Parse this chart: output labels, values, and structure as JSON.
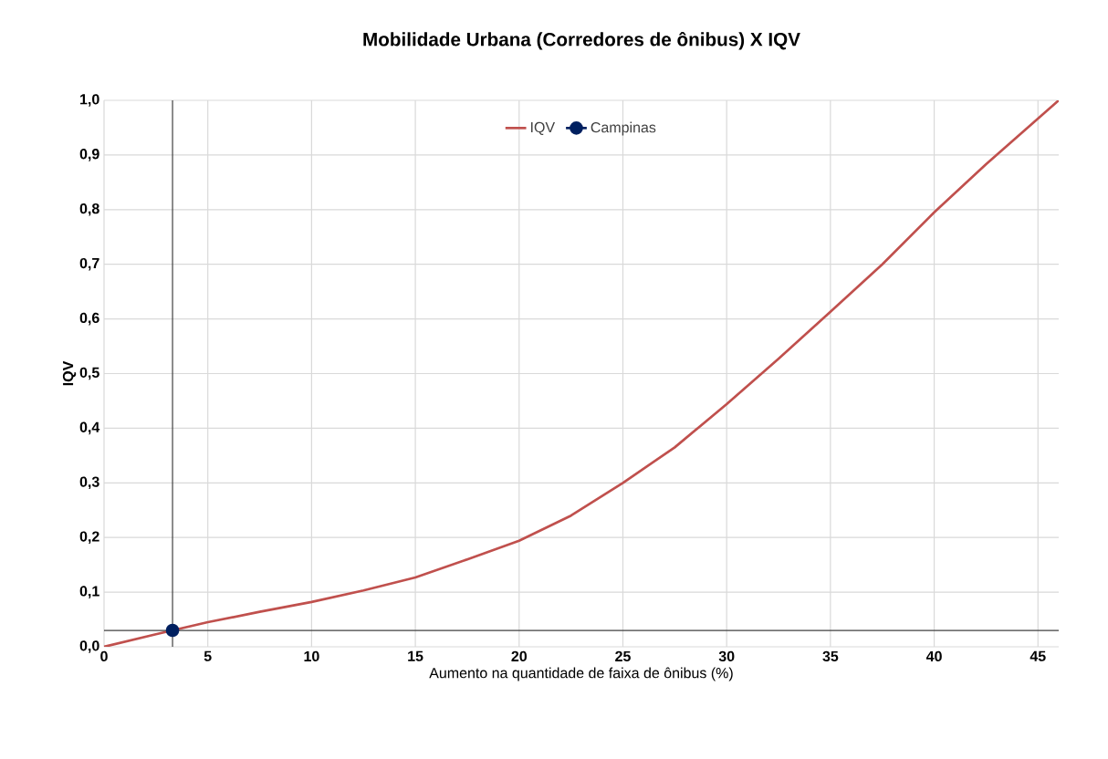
{
  "chart_data": {
    "type": "line",
    "title": "Mobilidade Urbana (Corredores de ônibus) X IQV",
    "xlabel": "Aumento na quantidade de faixa de ônibus (%)",
    "ylabel": "IQV",
    "series": [
      {
        "name": "IQV",
        "color": "#c0504d",
        "marker": "none",
        "x": [
          0,
          2.5,
          5,
          7.5,
          10,
          12.5,
          15,
          17.5,
          20,
          22.5,
          25,
          27.5,
          30,
          32.5,
          35,
          37.5,
          40,
          42.5,
          46
        ],
        "values": [
          0,
          0.023,
          0.045,
          0.064,
          0.082,
          0.103,
          0.127,
          0.16,
          0.194,
          0.24,
          0.3,
          0.365,
          0.444,
          0.527,
          0.613,
          0.7,
          0.795,
          0.883,
          1.0
        ]
      },
      {
        "name": "Campinas",
        "color": "#002060",
        "marker": "circle",
        "x": [
          3.3
        ],
        "values": [
          0.03
        ]
      }
    ],
    "xlim": [
      0,
      46
    ],
    "ylim": [
      0,
      1
    ],
    "xticks": [
      0,
      5,
      10,
      15,
      20,
      25,
      30,
      35,
      40,
      45
    ],
    "yticks": [
      {
        "value": 0,
        "label": "0,0"
      },
      {
        "value": 0.1,
        "label": "0,1"
      },
      {
        "value": 0.2,
        "label": "0,2"
      },
      {
        "value": 0.3,
        "label": "0,3"
      },
      {
        "value": 0.4,
        "label": "0,4"
      },
      {
        "value": 0.5,
        "label": "0,5"
      },
      {
        "value": 0.6,
        "label": "0,6"
      },
      {
        "value": 0.7,
        "label": "0,7"
      },
      {
        "value": 0.8,
        "label": "0,8"
      },
      {
        "value": 0.9,
        "label": "0,9"
      },
      {
        "value": 1,
        "label": "1,0"
      }
    ],
    "ref_lines": [
      {
        "axis": "x",
        "value": 3.3,
        "color": "#404040"
      },
      {
        "axis": "y",
        "value": 0.03,
        "color": "#404040"
      }
    ],
    "grid": true,
    "legend": "top"
  }
}
